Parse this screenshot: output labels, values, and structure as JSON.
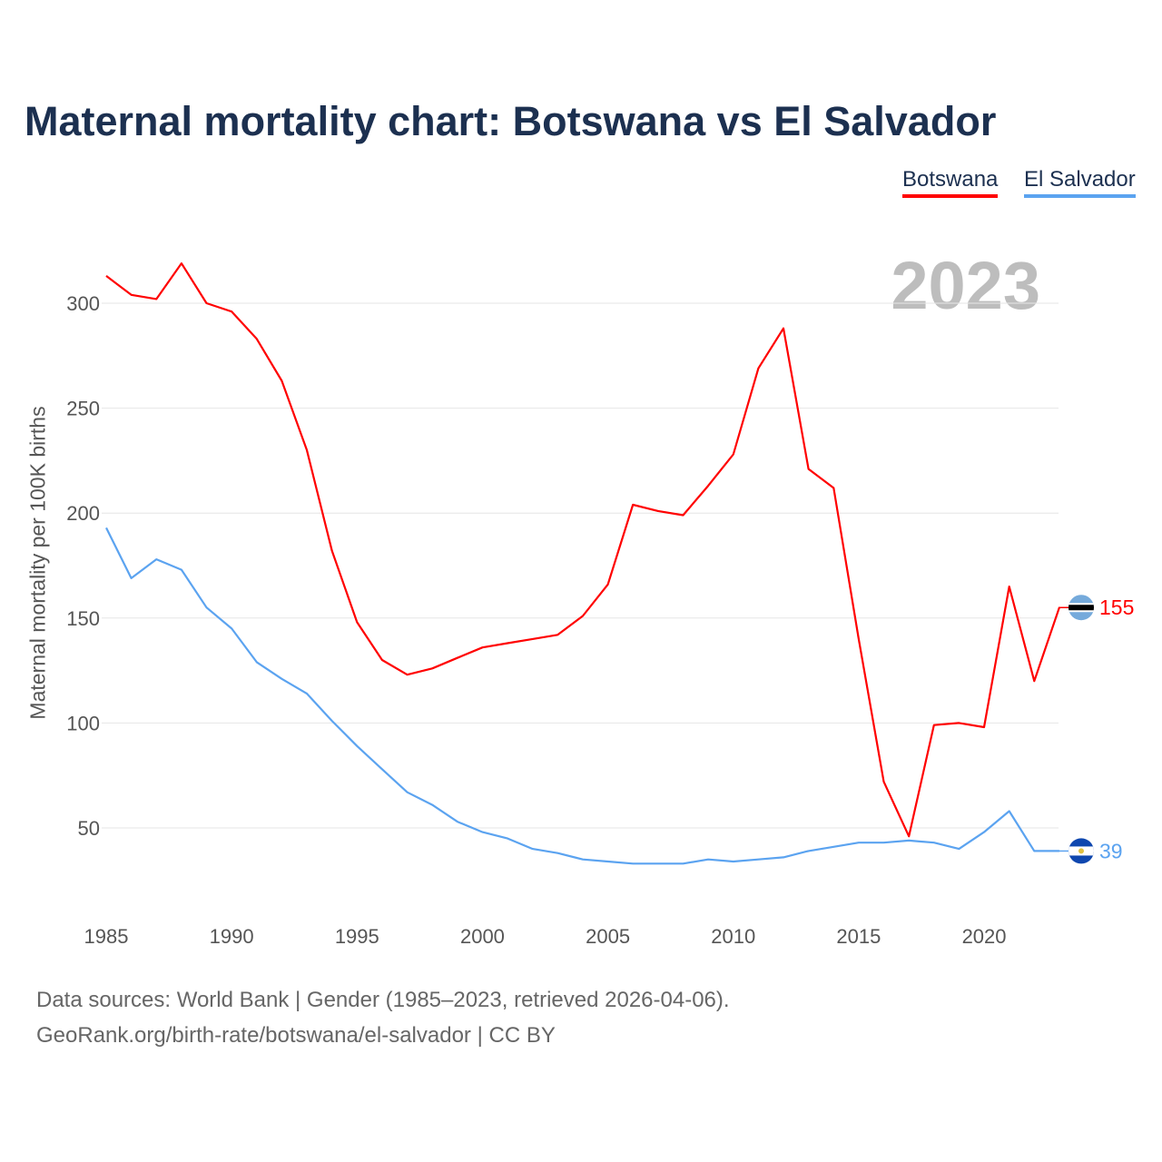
{
  "chart_data": {
    "type": "line",
    "title": "Maternal mortality chart: Botswana vs El Salvador",
    "ylabel": "Maternal mortality per 100K births",
    "xlabel": "",
    "year_label": "2023",
    "x": [
      1985,
      1986,
      1987,
      1988,
      1989,
      1990,
      1991,
      1992,
      1993,
      1994,
      1995,
      1996,
      1997,
      1998,
      1999,
      2000,
      2001,
      2002,
      2003,
      2004,
      2005,
      2006,
      2007,
      2008,
      2009,
      2010,
      2011,
      2012,
      2013,
      2014,
      2015,
      2016,
      2017,
      2018,
      2019,
      2020,
      2021,
      2022,
      2023
    ],
    "xticks": [
      1985,
      1990,
      1995,
      2000,
      2005,
      2010,
      2015,
      2020
    ],
    "yticks": [
      50,
      100,
      150,
      200,
      250,
      300
    ],
    "xlim": [
      1985,
      2023
    ],
    "ylim": [
      20,
      330
    ],
    "grid": true,
    "legend_position": "top-right",
    "series": [
      {
        "name": "Botswana",
        "color": "#ff0000",
        "end_label": "155",
        "values": [
          313,
          304,
          302,
          319,
          300,
          296,
          283,
          263,
          230,
          182,
          148,
          130,
          123,
          126,
          131,
          136,
          138,
          140,
          142,
          151,
          166,
          204,
          201,
          199,
          213,
          228,
          269,
          288,
          221,
          212,
          140,
          72,
          46,
          99,
          100,
          98,
          165,
          120,
          155
        ]
      },
      {
        "name": "El Salvador",
        "color": "#5ba3f0",
        "end_label": "39",
        "values": [
          193,
          169,
          178,
          173,
          155,
          145,
          129,
          121,
          114,
          101,
          89,
          78,
          67,
          61,
          53,
          48,
          45,
          40,
          38,
          35,
          34,
          33,
          33,
          33,
          35,
          34,
          35,
          36,
          39,
          41,
          43,
          43,
          44,
          43,
          40,
          48,
          58,
          39,
          39
        ]
      }
    ]
  },
  "footer": {
    "line1": "Data sources: World Bank | Gender (1985–2023, retrieved 2026-04-06).",
    "line2": "GeoRank.org/birth-rate/botswana/el-salvador | CC BY"
  }
}
